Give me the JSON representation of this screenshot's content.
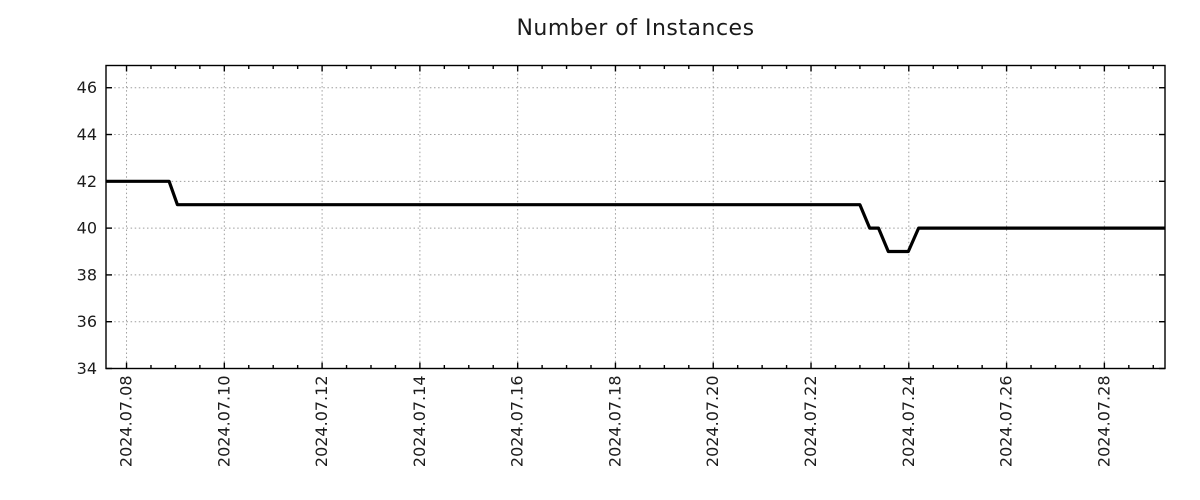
{
  "page": {
    "background": "#ffffff"
  },
  "chart_data": {
    "type": "line",
    "title": "Number of Instances",
    "xlabel": "",
    "ylabel": "",
    "grid": true,
    "legend": false,
    "colors": {
      "line": "#000000",
      "grid": "#9e9e9e",
      "axis": "#000000",
      "text": "#1c1c1c",
      "background": "#ffffff"
    },
    "x_axis": {
      "unit": "date",
      "epoch": "2024-07-08",
      "range_days": [
        -0.42,
        21.24
      ],
      "minor_tick_step_days": 0.5,
      "major_ticks": [
        {
          "d": 0,
          "label": "2024.07.08"
        },
        {
          "d": 2,
          "label": "2024.07.10"
        },
        {
          "d": 4,
          "label": "2024.07.12"
        },
        {
          "d": 6,
          "label": "2024.07.14"
        },
        {
          "d": 8,
          "label": "2024.07.16"
        },
        {
          "d": 10,
          "label": "2024.07.18"
        },
        {
          "d": 12,
          "label": "2024.07.20"
        },
        {
          "d": 14,
          "label": "2024.07.22"
        },
        {
          "d": 16,
          "label": "2024.07.24"
        },
        {
          "d": 18,
          "label": "2024.07.26"
        },
        {
          "d": 20,
          "label": "2024.07.28"
        }
      ]
    },
    "y_axis": {
      "range": [
        34,
        46.95
      ],
      "ticks": [
        34,
        36,
        38,
        40,
        42,
        44,
        46
      ]
    },
    "series": [
      {
        "name": "instances",
        "color": "#000000",
        "width": 3.2,
        "points": [
          {
            "date": "2024-07-07 14:00",
            "d": -0.42,
            "y": 42
          },
          {
            "date": "2024-07-08 21:00",
            "d": 0.87,
            "y": 42
          },
          {
            "date": "2024-07-09 01:00",
            "d": 1.04,
            "y": 41
          },
          {
            "date": "2024-07-23 00:00",
            "d": 15.0,
            "y": 41
          },
          {
            "date": "2024-07-23 05:00",
            "d": 15.2,
            "y": 40
          },
          {
            "date": "2024-07-23 09:00",
            "d": 15.38,
            "y": 40
          },
          {
            "date": "2024-07-23 14:00",
            "d": 15.58,
            "y": 39
          },
          {
            "date": "2024-07-24 00:00",
            "d": 15.99,
            "y": 39
          },
          {
            "date": "2024-07-24 05:00",
            "d": 16.2,
            "y": 40
          },
          {
            "date": "2024-07-29 06:00",
            "d": 21.24,
            "y": 40
          }
        ]
      }
    ]
  }
}
